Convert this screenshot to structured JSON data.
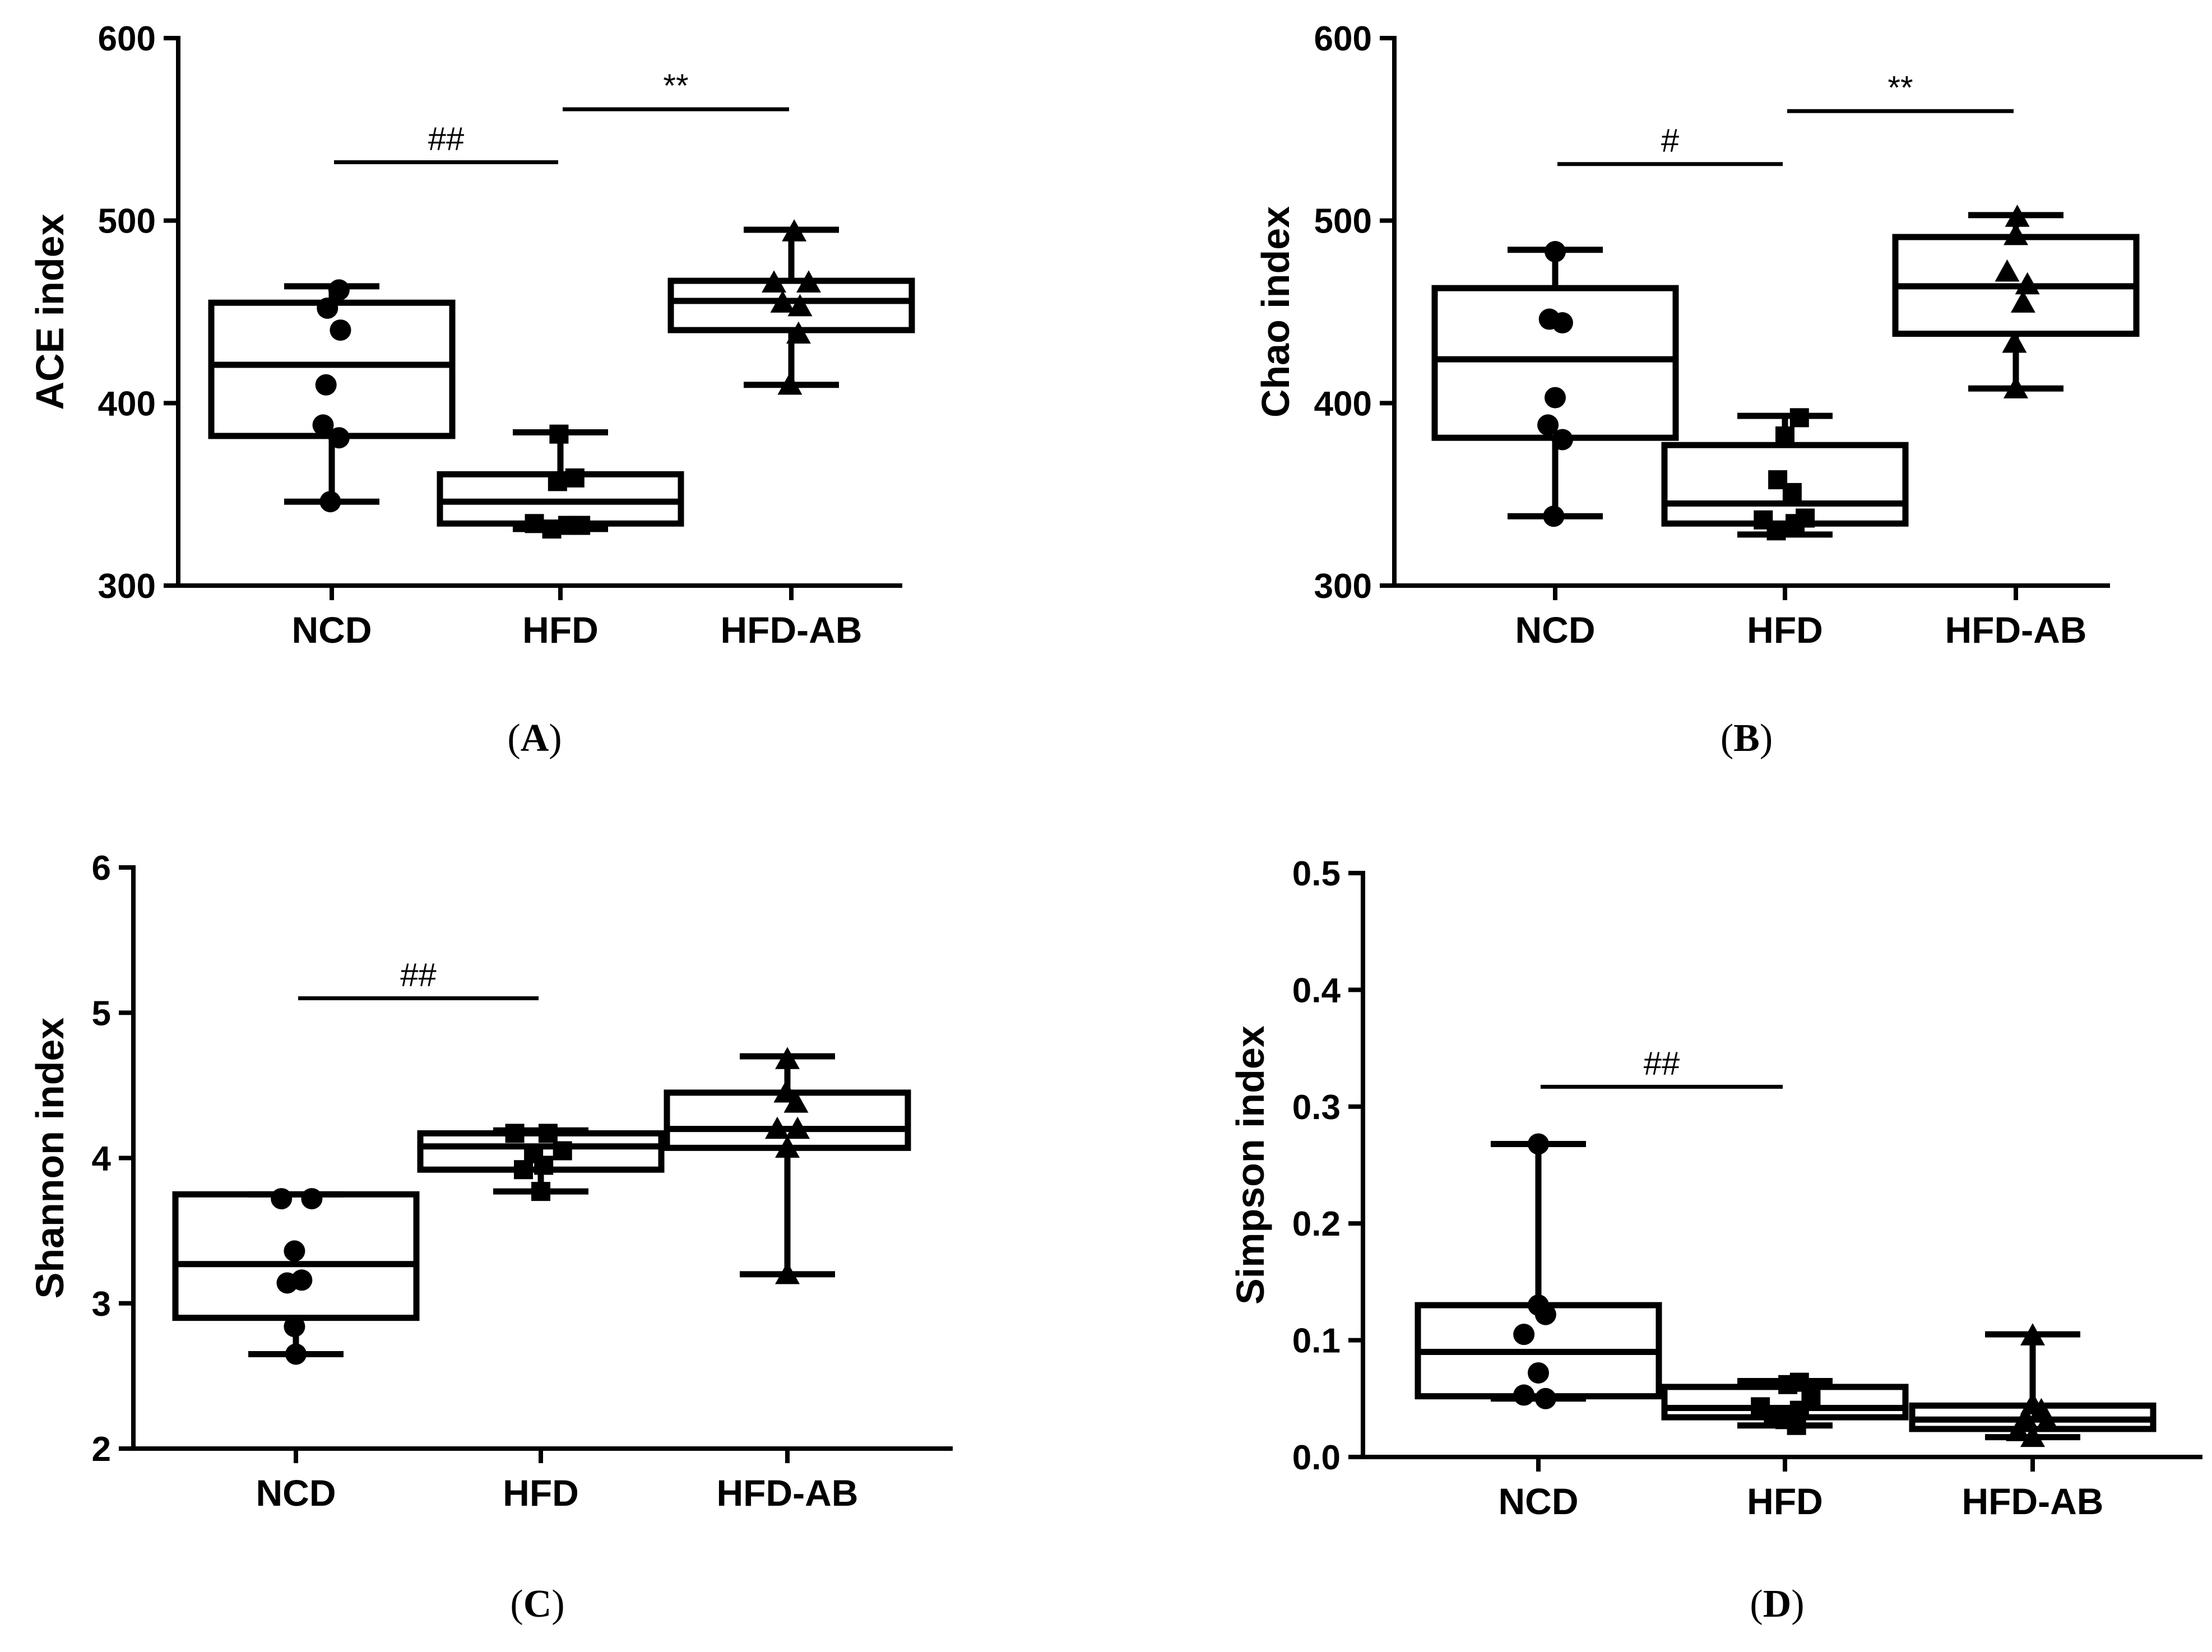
{
  "chart_data": [
    {
      "panel": "A",
      "panel_label": "(A)",
      "type": "box",
      "ylabel": "ACE index",
      "ylim": [
        300,
        600
      ],
      "yticks": [
        300,
        400,
        500,
        600
      ],
      "categories": [
        "NCD",
        "HFD",
        "HFD-AB"
      ],
      "colors": {
        "line": "#000000",
        "fill": "#ffffff"
      },
      "groups": [
        {
          "name": "NCD",
          "marker": "circle",
          "min": 346,
          "q1": 382,
          "median": 421,
          "q3": 455,
          "max": 464,
          "points": [
            [
              -0.01,
              346
            ],
            [
              0.05,
              381
            ],
            [
              -0.06,
              388
            ],
            [
              -0.04,
              410
            ],
            [
              0.06,
              440
            ],
            [
              -0.03,
              452
            ],
            [
              0.05,
              462
            ]
          ]
        },
        {
          "name": "HFD",
          "marker": "square",
          "min": 331,
          "q1": 334,
          "median": 346,
          "q3": 361,
          "max": 384,
          "points": [
            [
              -0.18,
              334
            ],
            [
              -0.06,
              331
            ],
            [
              0.05,
              333
            ],
            [
              0.14,
              333
            ],
            [
              -0.02,
              357
            ],
            [
              0.1,
              359
            ],
            [
              -0.01,
              383
            ]
          ]
        },
        {
          "name": "HFD-AB",
          "marker": "triangle",
          "min": 410,
          "q1": 440,
          "median": 456,
          "q3": 467,
          "max": 495,
          "points": [
            [
              -0.01,
              410
            ],
            [
              0.05,
              438
            ],
            [
              -0.12,
              466
            ],
            [
              -0.06,
              455
            ],
            [
              0.06,
              453
            ],
            [
              0.12,
              466
            ],
            [
              0.02,
              494
            ]
          ]
        }
      ],
      "significance": [
        {
          "from": 0,
          "to": 1,
          "value": 532,
          "label": "##"
        },
        {
          "from": 1,
          "to": 2,
          "value": 561,
          "label": "**"
        }
      ]
    },
    {
      "panel": "B",
      "panel_label": "(B)",
      "type": "box",
      "ylabel": "Chao index",
      "ylim": [
        300,
        600
      ],
      "yticks": [
        300,
        400,
        500,
        600
      ],
      "categories": [
        "NCD",
        "HFD",
        "HFD-AB"
      ],
      "colors": {
        "line": "#000000",
        "fill": "#ffffff"
      },
      "groups": [
        {
          "name": "NCD",
          "marker": "circle",
          "min": 338,
          "q1": 381,
          "median": 424,
          "q3": 463,
          "max": 484,
          "points": [
            [
              -0.01,
              338
            ],
            [
              0.05,
              380
            ],
            [
              -0.05,
              388
            ],
            [
              0.0,
              403
            ],
            [
              -0.04,
              446
            ],
            [
              0.05,
              444
            ],
            [
              0.0,
              483
            ]
          ]
        },
        {
          "name": "HFD",
          "marker": "square",
          "min": 328,
          "q1": 334,
          "median": 345,
          "q3": 377,
          "max": 393,
          "points": [
            [
              -0.15,
              336
            ],
            [
              -0.06,
              330
            ],
            [
              0.07,
              334
            ],
            [
              0.14,
              337
            ],
            [
              -0.05,
              358
            ],
            [
              0.05,
              351
            ],
            [
              0.0,
              382
            ],
            [
              0.1,
              392
            ]
          ]
        },
        {
          "name": "HFD-AB",
          "marker": "triangle",
          "min": 408,
          "q1": 438,
          "median": 464,
          "q3": 491,
          "max": 503,
          "points": [
            [
              0.0,
              408
            ],
            [
              -0.01,
              433
            ],
            [
              0.05,
              455
            ],
            [
              -0.06,
              472
            ],
            [
              0.08,
              465
            ],
            [
              0.0,
              492
            ],
            [
              0.01,
              502
            ]
          ]
        }
      ],
      "significance": [
        {
          "from": 0,
          "to": 1,
          "value": 531,
          "label": "#"
        },
        {
          "from": 1,
          "to": 2,
          "value": 560,
          "label": "**"
        }
      ]
    },
    {
      "panel": "C",
      "panel_label": "(C)",
      "type": "box",
      "ylabel": "Shannon index",
      "ylim": [
        2,
        6
      ],
      "yticks": [
        2,
        3,
        4,
        5,
        6
      ],
      "categories": [
        "NCD",
        "HFD",
        "HFD-AB"
      ],
      "colors": {
        "line": "#000000",
        "fill": "#ffffff"
      },
      "groups": [
        {
          "name": "NCD",
          "marker": "circle",
          "min": 2.65,
          "q1": 2.9,
          "median": 3.27,
          "q3": 3.75,
          "max": 3.75,
          "points": [
            [
              0.0,
              2.65
            ],
            [
              -0.01,
              2.84
            ],
            [
              -0.06,
              3.14
            ],
            [
              0.04,
              3.16
            ],
            [
              -0.01,
              3.36
            ],
            [
              -0.1,
              3.72
            ],
            [
              0.11,
              3.72
            ]
          ]
        },
        {
          "name": "HFD",
          "marker": "square",
          "min": 3.77,
          "q1": 3.92,
          "median": 4.08,
          "q3": 4.17,
          "max": 4.19,
          "points": [
            [
              -0.18,
              4.17
            ],
            [
              0.05,
              4.17
            ],
            [
              -0.05,
              4.03
            ],
            [
              0.15,
              4.05
            ],
            [
              0.02,
              3.95
            ],
            [
              -0.12,
              3.92
            ],
            [
              0.0,
              3.77
            ]
          ]
        },
        {
          "name": "HFD-AB",
          "marker": "triangle",
          "min": 3.2,
          "q1": 4.07,
          "median": 4.2,
          "q3": 4.45,
          "max": 4.7,
          "points": [
            [
              0.0,
              3.2
            ],
            [
              0.0,
              4.07
            ],
            [
              -0.07,
              4.2
            ],
            [
              0.07,
              4.2
            ],
            [
              0.06,
              4.38
            ],
            [
              -0.01,
              4.45
            ],
            [
              0.0,
              4.68
            ]
          ]
        }
      ],
      "significance": [
        {
          "from": 0,
          "to": 1,
          "value": 5.1,
          "label": "##"
        }
      ]
    },
    {
      "panel": "D",
      "panel_label": "(D)",
      "type": "box",
      "ylabel": "Simpson index",
      "ylim": [
        0,
        0.5
      ],
      "yticks": [
        0.0,
        0.1,
        0.2,
        0.3,
        0.4,
        0.5
      ],
      "ytick_labels": [
        "0.0",
        "0.1",
        "0.2",
        "0.3",
        "0.4",
        "0.5"
      ],
      "categories": [
        "NCD",
        "HFD",
        "HFD-AB"
      ],
      "colors": {
        "line": "#000000",
        "fill": "#ffffff"
      },
      "groups": [
        {
          "name": "NCD",
          "marker": "circle",
          "min": 0.05,
          "q1": 0.052,
          "median": 0.09,
          "q3": 0.13,
          "max": 0.268,
          "points": [
            [
              -0.1,
              0.053
            ],
            [
              0.05,
              0.05
            ],
            [
              0.0,
              0.072
            ],
            [
              -0.1,
              0.105
            ],
            [
              0.05,
              0.122
            ],
            [
              0.0,
              0.13
            ],
            [
              0.0,
              0.268
            ]
          ]
        },
        {
          "name": "HFD",
          "marker": "square",
          "min": 0.027,
          "q1": 0.034,
          "median": 0.042,
          "q3": 0.06,
          "max": 0.065,
          "points": [
            [
              -0.17,
              0.043
            ],
            [
              -0.08,
              0.035
            ],
            [
              0.0,
              0.032
            ],
            [
              0.08,
              0.027
            ],
            [
              0.1,
              0.04
            ],
            [
              0.18,
              0.05
            ],
            [
              0.02,
              0.062
            ],
            [
              0.1,
              0.064
            ]
          ]
        },
        {
          "name": "HFD-AB",
          "marker": "triangle",
          "min": 0.017,
          "q1": 0.024,
          "median": 0.032,
          "q3": 0.044,
          "max": 0.105,
          "points": [
            [
              -0.1,
              0.022
            ],
            [
              0.0,
              0.017
            ],
            [
              0.1,
              0.03
            ],
            [
              -0.05,
              0.033
            ],
            [
              0.06,
              0.04
            ],
            [
              0.0,
              0.045
            ],
            [
              0.0,
              0.104
            ]
          ]
        }
      ],
      "significance": [
        {
          "from": 0,
          "to": 1,
          "value": 0.317,
          "label": "##"
        }
      ]
    }
  ]
}
